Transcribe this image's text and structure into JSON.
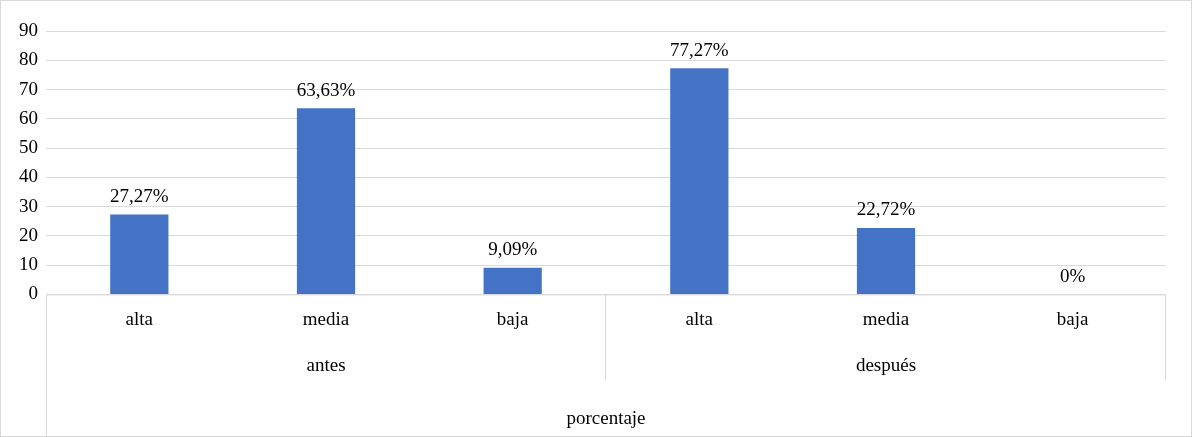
{
  "chart_data": {
    "type": "bar",
    "xlabel": "porcentaje",
    "categories": [
      "alta",
      "media",
      "baja",
      "alta",
      "media",
      "baja"
    ],
    "values": [
      27.27,
      63.63,
      9.09,
      77.27,
      22.72,
      0
    ],
    "value_labels": [
      "27,27%",
      "63,63%",
      "9,09%",
      "77,27%",
      "22,72%",
      "0%"
    ],
    "color": "#4472c4",
    "annotations": [
      "antes",
      "después"
    ],
    "ylim": [
      0,
      90
    ],
    "yticks": [
      0,
      10,
      20,
      30,
      40,
      50,
      60,
      70,
      80,
      90
    ],
    "grid": "y",
    "legend": false
  }
}
